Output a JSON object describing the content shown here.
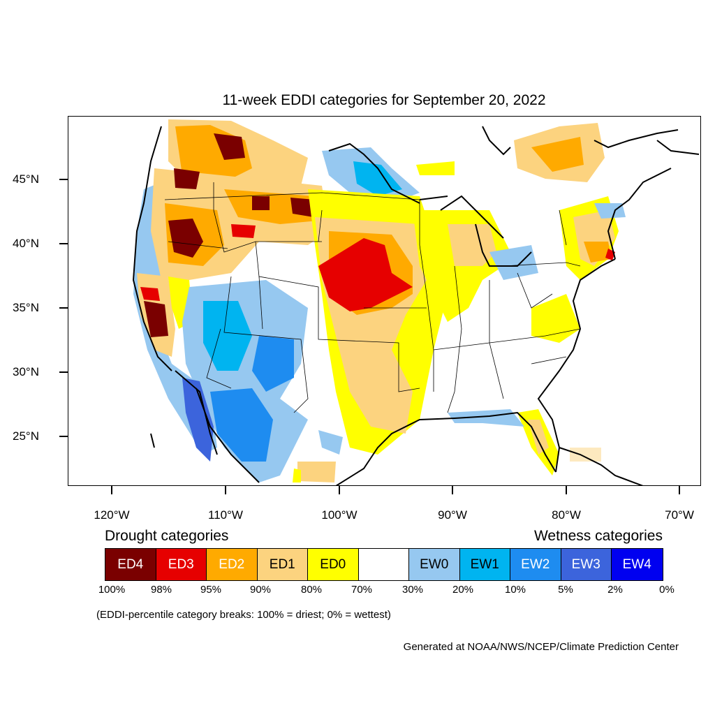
{
  "title": "11-week EDDI categories for September 20, 2022",
  "latitude_labels": [
    "45°N",
    "40°N",
    "35°N",
    "30°N",
    "25°N"
  ],
  "longitude_labels": [
    "120°W",
    "110°W",
    "100°W",
    "90°W",
    "80°W",
    "70°W"
  ],
  "drought_heading": "Drought categories",
  "wetness_heading": "Wetness categories",
  "legend": [
    {
      "label": "ED4",
      "color": "#7a0000",
      "text_color": "#ffffff"
    },
    {
      "label": "ED3",
      "color": "#e60000",
      "text_color": "#ffffff"
    },
    {
      "label": "ED2",
      "color": "#ffaa00",
      "text_color": "#ffffff"
    },
    {
      "label": "ED1",
      "color": "#fcd37f",
      "text_color": "#000000"
    },
    {
      "label": "ED0",
      "color": "#ffff00",
      "text_color": "#000000"
    },
    {
      "label": "",
      "color": "#ffffff",
      "text_color": "#000000"
    },
    {
      "label": "EW0",
      "color": "#96c8f0",
      "text_color": "#000000"
    },
    {
      "label": "EW1",
      "color": "#00b4f0",
      "text_color": "#000000"
    },
    {
      "label": "EW2",
      "color": "#1e8cf0",
      "text_color": "#ffffff"
    },
    {
      "label": "EW3",
      "color": "#3c64dc",
      "text_color": "#ffffff"
    },
    {
      "label": "EW4",
      "color": "#0000f0",
      "text_color": "#ffffff"
    }
  ],
  "percent_breaks": [
    "100%",
    "98%",
    "95%",
    "90%",
    "80%",
    "70%",
    "30%",
    "20%",
    "10%",
    "5%",
    "2%",
    "0%"
  ],
  "note": "(EDDI-percentile category breaks: 100% = driest; 0% = wettest)",
  "credit": "Generated at NOAA/NWS/NCEP/Climate Prediction Center"
}
